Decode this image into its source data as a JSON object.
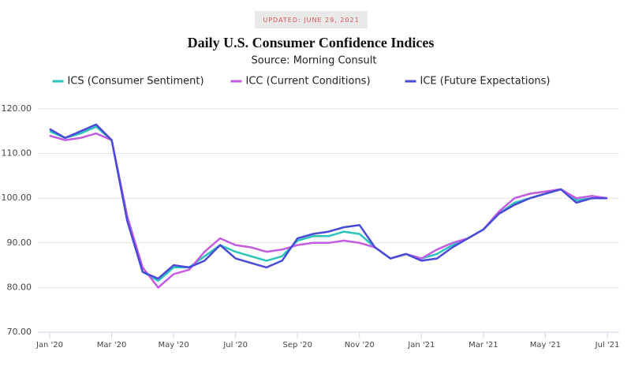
{
  "chart_data": {
    "type": "line",
    "badge": "UPDATED: JUNE 29, 2021",
    "title": "Daily U.S. Consumer Confidence Indices",
    "subtitle": "Source: Morning Consult",
    "categories": [
      "Jan '20",
      null,
      null,
      null,
      "Mar '20",
      null,
      null,
      null,
      "May '20",
      null,
      null,
      null,
      "Jul '20",
      null,
      null,
      null,
      "Sep '20",
      null,
      null,
      null,
      "Nov '20",
      null,
      null,
      null,
      "Jan '21",
      null,
      null,
      null,
      "Mar '21",
      null,
      null,
      null,
      "May '21",
      null,
      null,
      null,
      "Jul '21"
    ],
    "series": [
      {
        "name": "ICS (Consumer Sentiment)",
        "color": "#2bc4b8",
        "values": [
          115,
          113.5,
          114.5,
          116,
          113,
          96,
          83.5,
          81.5,
          84.5,
          84.5,
          87,
          89.5,
          88,
          87,
          86,
          87,
          90.5,
          91.5,
          91.5,
          92.5,
          92,
          89,
          86.5,
          87.5,
          86.5,
          87.5,
          89.5,
          91,
          93,
          96.5,
          99,
          100,
          101,
          102,
          99.5,
          100,
          100
        ]
      },
      {
        "name": "ICC (Current Conditions)",
        "color": "#c35ce0",
        "values": [
          114,
          113,
          113.5,
          114.5,
          113,
          96,
          84.5,
          80,
          83,
          84,
          88,
          91,
          89.5,
          89,
          88,
          88.5,
          89.5,
          90,
          90,
          90.5,
          90,
          89,
          86.5,
          87.5,
          86.5,
          88.5,
          90,
          91,
          93,
          97,
          100,
          101,
          101.5,
          102,
          100,
          100.5,
          100
        ]
      },
      {
        "name": "ICE (Future Expectations)",
        "color": "#4a4ad8",
        "values": [
          115.5,
          113.5,
          115,
          116.5,
          113,
          95,
          83.5,
          82,
          85,
          84.5,
          86,
          89.5,
          86.5,
          85.5,
          84.5,
          86,
          91,
          92,
          92.5,
          93.5,
          94,
          89,
          86.5,
          87.5,
          86,
          86.5,
          89,
          91,
          93,
          96.5,
          98.5,
          100,
          101,
          102,
          99,
          100,
          100
        ]
      }
    ],
    "ylim": [
      70,
      120
    ],
    "yticks": [
      {
        "value": 70,
        "label": "70.00"
      },
      {
        "value": 80,
        "label": "80.00"
      },
      {
        "value": 90,
        "label": "90.00"
      },
      {
        "value": 100,
        "label": "100.00"
      },
      {
        "value": 110,
        "label": "110.00"
      },
      {
        "value": 120,
        "label": "120.00"
      }
    ],
    "grid": true,
    "legend": "top"
  }
}
